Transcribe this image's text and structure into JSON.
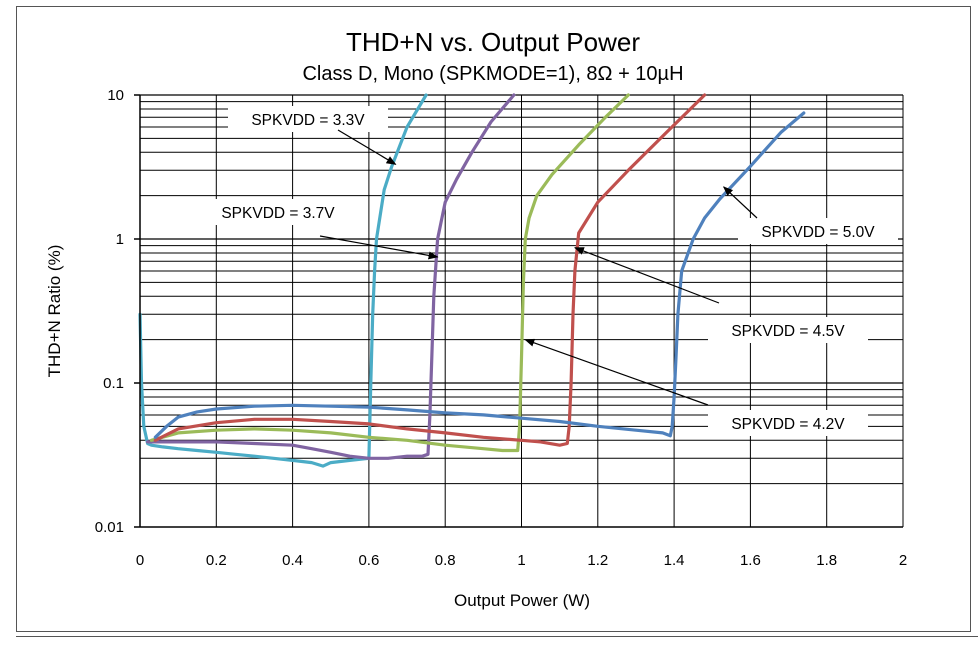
{
  "chart_data": {
    "type": "line",
    "title": "THD+N vs. Output Power",
    "subtitle": "Class D, Mono (SPKMODE=1), 8Ω + 10µH",
    "xlabel": "Output Power (W)",
    "ylabel": "THD+N Ratio (%)",
    "xlim": [
      0,
      2
    ],
    "ylim": [
      0.01,
      10
    ],
    "yscale": "log",
    "x_ticks": [
      0,
      0.2,
      0.4,
      0.6,
      0.8,
      1,
      1.2,
      1.4,
      1.6,
      1.8,
      2
    ],
    "x_tick_labels": [
      "0",
      "0.2",
      "0.4",
      "0.6",
      "0.8",
      "1",
      "1.2",
      "1.4",
      "1.6",
      "1.8",
      "2"
    ],
    "y_ticks": [
      0.01,
      0.1,
      1,
      10
    ],
    "y_tick_labels": [
      "0.01",
      "0.1",
      "1",
      "10"
    ],
    "grid": true,
    "series": [
      {
        "name": "SPKVDD = 3.3V",
        "color": "#4bacc6",
        "x": [
          0.0,
          0.004,
          0.01,
          0.02,
          0.03,
          0.06,
          0.1,
          0.15,
          0.2,
          0.25,
          0.3,
          0.35,
          0.4,
          0.45,
          0.48,
          0.5,
          0.55,
          0.6,
          0.605,
          0.61,
          0.615,
          0.62,
          0.64,
          0.66,
          0.7,
          0.75
        ],
        "y": [
          0.3,
          0.1,
          0.05,
          0.038,
          0.037,
          0.036,
          0.035,
          0.034,
          0.033,
          0.032,
          0.031,
          0.03,
          0.029,
          0.028,
          0.0265,
          0.028,
          0.029,
          0.03,
          0.1,
          0.3,
          0.6,
          1.0,
          2.2,
          3.2,
          6.0,
          10.0
        ]
      },
      {
        "name": "SPKVDD = 3.7V",
        "color": "#8064a2",
        "x": [
          0.02,
          0.05,
          0.1,
          0.15,
          0.2,
          0.3,
          0.4,
          0.45,
          0.5,
          0.55,
          0.6,
          0.65,
          0.7,
          0.74,
          0.755,
          0.76,
          0.765,
          0.77,
          0.78,
          0.8,
          0.83,
          0.87,
          0.92,
          0.98
        ],
        "y": [
          0.039,
          0.039,
          0.039,
          0.039,
          0.039,
          0.038,
          0.037,
          0.035,
          0.033,
          0.031,
          0.03,
          0.03,
          0.031,
          0.031,
          0.032,
          0.06,
          0.15,
          0.4,
          1.0,
          1.8,
          2.6,
          4.0,
          6.5,
          10.0
        ]
      },
      {
        "name": "SPKVDD = 4.2V",
        "color": "#9bbb59",
        "x": [
          0.03,
          0.1,
          0.2,
          0.3,
          0.4,
          0.5,
          0.6,
          0.7,
          0.8,
          0.9,
          0.95,
          0.99,
          0.995,
          1.0,
          1.005,
          1.01,
          1.02,
          1.04,
          1.08,
          1.15,
          1.22,
          1.28
        ],
        "y": [
          0.04,
          0.045,
          0.047,
          0.048,
          0.047,
          0.045,
          0.042,
          0.04,
          0.037,
          0.035,
          0.034,
          0.034,
          0.05,
          0.15,
          0.5,
          1.0,
          1.4,
          2.0,
          2.8,
          4.5,
          7.0,
          10.0
        ]
      },
      {
        "name": "SPKVDD = 4.5V",
        "color": "#c0504d",
        "x": [
          0.04,
          0.1,
          0.2,
          0.3,
          0.4,
          0.5,
          0.6,
          0.7,
          0.8,
          0.9,
          1.0,
          1.05,
          1.1,
          1.12,
          1.125,
          1.13,
          1.135,
          1.14,
          1.15,
          1.2,
          1.28,
          1.38,
          1.48
        ],
        "y": [
          0.04,
          0.048,
          0.053,
          0.056,
          0.056,
          0.054,
          0.052,
          0.048,
          0.045,
          0.042,
          0.04,
          0.039,
          0.037,
          0.038,
          0.05,
          0.1,
          0.3,
          0.6,
          1.1,
          1.8,
          3.0,
          5.5,
          10.0
        ]
      },
      {
        "name": "SPKVDD = 5.0V",
        "color": "#4f81bd",
        "x": [
          0.04,
          0.07,
          0.1,
          0.15,
          0.2,
          0.3,
          0.4,
          0.5,
          0.6,
          0.7,
          0.8,
          0.9,
          1.0,
          1.1,
          1.2,
          1.3,
          1.37,
          1.39,
          1.395,
          1.4,
          1.405,
          1.41,
          1.42,
          1.45,
          1.48,
          1.52,
          1.6,
          1.68,
          1.74
        ],
        "y": [
          0.042,
          0.05,
          0.058,
          0.063,
          0.066,
          0.069,
          0.07,
          0.069,
          0.068,
          0.065,
          0.062,
          0.06,
          0.057,
          0.054,
          0.05,
          0.047,
          0.045,
          0.043,
          0.05,
          0.08,
          0.15,
          0.3,
          0.6,
          1.0,
          1.4,
          1.9,
          3.2,
          5.5,
          7.5
        ]
      }
    ],
    "annotations": [
      {
        "text": "SPKVDD = 3.3V",
        "series": 0,
        "arrow_to": [
          0.67,
          3.3
        ]
      },
      {
        "text": "SPKVDD = 3.7V",
        "series": 1,
        "arrow_to": [
          0.78,
          0.75
        ]
      },
      {
        "text": "SPKVDD = 5.0V",
        "series": 4,
        "arrow_to": [
          1.53,
          2.3
        ]
      },
      {
        "text": "SPKVDD = 4.5V",
        "series": 3,
        "arrow_to": [
          1.14,
          0.87
        ]
      },
      {
        "text": "SPKVDD = 4.2V",
        "series": 2,
        "arrow_to": [
          1.01,
          0.2
        ]
      }
    ]
  }
}
